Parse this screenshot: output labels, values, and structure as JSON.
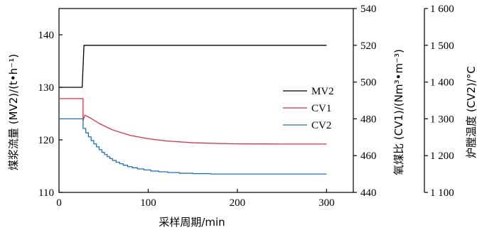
{
  "chart_data": {
    "type": "line",
    "xlabel": "采样周期/min",
    "x_axis": {
      "range": [
        0,
        330
      ],
      "ticks": [
        0,
        100,
        200,
        300
      ],
      "tick_labels": [
        "0",
        "100",
        "200",
        "300"
      ]
    },
    "axes": {
      "mv2": {
        "label": "煤浆流量 (MV2)/(t•h⁻¹)",
        "range": [
          110,
          145
        ],
        "ticks": [
          110,
          120,
          130,
          140
        ],
        "tick_labels": [
          "110",
          "120",
          "130",
          "140"
        ]
      },
      "cv1": {
        "label": "氧煤比 (CV1)/(Nm³•m⁻³)",
        "range": [
          440,
          540
        ],
        "ticks": [
          440,
          460,
          480,
          500,
          520,
          540
        ],
        "tick_labels": [
          "440",
          "460",
          "480",
          "500",
          "520",
          "540"
        ]
      },
      "cv2": {
        "label": "炉膛温度 (CV2)/°C",
        "range": [
          1100,
          1600
        ],
        "ticks": [
          1100,
          1200,
          1300,
          1400,
          1500,
          1600
        ],
        "tick_labels": [
          "1 100",
          "1 200",
          "1 300",
          "1 400",
          "1 500",
          "1 600"
        ]
      }
    },
    "legend_position": "center-right",
    "series": [
      {
        "name": "MV2",
        "axis": "mv2",
        "color": "#000000",
        "points": [
          [
            0,
            130
          ],
          [
            26,
            130
          ],
          [
            26,
            130
          ],
          [
            28,
            138
          ],
          [
            300,
            138
          ]
        ]
      },
      {
        "name": "CV1",
        "axis": "cv1",
        "color": "#e0303a",
        "points": [
          [
            0,
            491
          ],
          [
            27,
            491
          ],
          [
            27,
            479
          ],
          [
            29,
            482
          ],
          [
            35,
            480.5
          ],
          [
            45,
            477.5
          ],
          [
            60,
            474
          ],
          [
            80,
            471
          ],
          [
            100,
            469.2
          ],
          [
            120,
            468
          ],
          [
            150,
            467
          ],
          [
            180,
            466.6
          ],
          [
            200,
            466.4
          ],
          [
            250,
            466.3
          ],
          [
            300,
            466.3
          ]
        ]
      },
      {
        "name": "CV2",
        "axis": "cv2",
        "color": "#1f6fc0",
        "points": [
          [
            0,
            1300
          ],
          [
            27,
            1300
          ],
          [
            27,
            1274
          ],
          [
            30,
            1274
          ],
          [
            30,
            1262
          ],
          [
            33,
            1262
          ],
          [
            33,
            1251
          ],
          [
            36,
            1251
          ],
          [
            36,
            1241
          ],
          [
            39,
            1241
          ],
          [
            39,
            1232
          ],
          [
            42,
            1232
          ],
          [
            42,
            1224
          ],
          [
            45,
            1224
          ],
          [
            45,
            1216
          ],
          [
            48,
            1216
          ],
          [
            48,
            1209
          ],
          [
            51,
            1209
          ],
          [
            51,
            1203
          ],
          [
            54,
            1203
          ],
          [
            54,
            1197
          ],
          [
            57,
            1197
          ],
          [
            57,
            1192
          ],
          [
            60,
            1192
          ],
          [
            60,
            1187
          ],
          [
            64,
            1187
          ],
          [
            64,
            1182
          ],
          [
            68,
            1182
          ],
          [
            68,
            1178
          ],
          [
            72,
            1178
          ],
          [
            72,
            1174
          ],
          [
            77,
            1174
          ],
          [
            77,
            1170
          ],
          [
            82,
            1170
          ],
          [
            82,
            1167
          ],
          [
            88,
            1167
          ],
          [
            88,
            1164
          ],
          [
            95,
            1164
          ],
          [
            95,
            1161
          ],
          [
            103,
            1161
          ],
          [
            103,
            1158
          ],
          [
            112,
            1158
          ],
          [
            112,
            1156
          ],
          [
            122,
            1156
          ],
          [
            122,
            1154
          ],
          [
            135,
            1154
          ],
          [
            135,
            1152
          ],
          [
            150,
            1152
          ],
          [
            150,
            1151
          ],
          [
            170,
            1151
          ],
          [
            170,
            1150
          ],
          [
            200,
            1150
          ],
          [
            300,
            1150
          ]
        ]
      }
    ]
  }
}
